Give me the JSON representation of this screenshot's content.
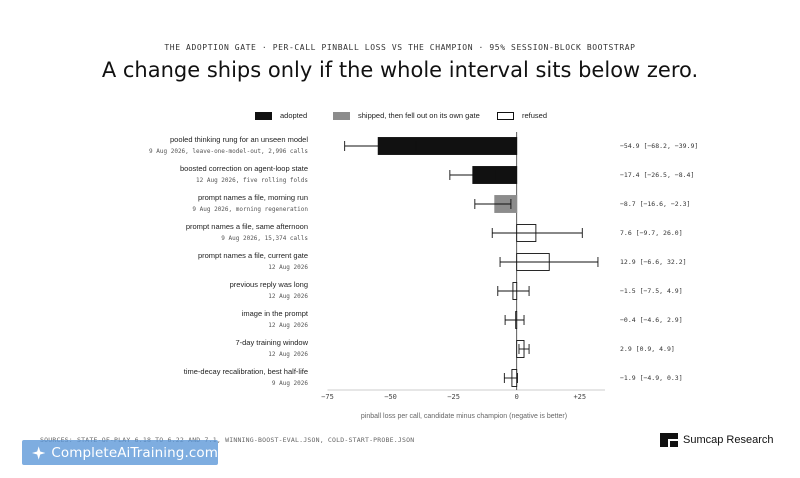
{
  "header": {
    "kicker": "THE ADOPTION GATE  ·  PER-CALL PINBALL LOSS VS THE CHAMPION  ·  95% SESSION-BLOCK BOOTSTRAP",
    "headline": "A change ships only if the whole interval sits below zero."
  },
  "legend": {
    "adopted": "adopted",
    "shipped": "shipped, then fell out on its own gate",
    "refused": "refused"
  },
  "colors": {
    "adopted": "#111111",
    "shipped": "#8c8c8c",
    "refused": "#ffffff",
    "ink": "#111111"
  },
  "chart_data": {
    "type": "bar",
    "orientation": "horizontal",
    "xlabel": "pinball loss per call, candidate minus champion (negative is better)",
    "xlim": [
      -75,
      35
    ],
    "xticks": [
      -75,
      -50,
      -25,
      0,
      25
    ],
    "xtick_labels": [
      "−75",
      "−50",
      "−25",
      "0",
      "+25"
    ],
    "grid": false,
    "legend_position": "top",
    "rows": [
      {
        "label": "pooled thinking rung for an unseen model",
        "sub": "9 Aug 2026, leave-one-model-out, 2,996 calls",
        "value": -54.9,
        "lo": -68.2,
        "hi": -39.9,
        "status": "adopted",
        "annot": "−54.9  [−68.2, −39.9]"
      },
      {
        "label": "boosted correction on agent-loop state",
        "sub": "12 Aug 2026, five rolling folds",
        "value": -17.4,
        "lo": -26.5,
        "hi": -8.4,
        "status": "adopted",
        "annot": "−17.4  [−26.5, −8.4]"
      },
      {
        "label": "prompt names a file, morning run",
        "sub": "9 Aug 2026, morning regeneration",
        "value": -8.7,
        "lo": -16.6,
        "hi": -2.3,
        "status": "shipped",
        "annot": "−8.7  [−16.6, −2.3]"
      },
      {
        "label": "prompt names a file, same afternoon",
        "sub": "9 Aug 2026, 15,374 calls",
        "value": 7.6,
        "lo": -9.7,
        "hi": 26.0,
        "status": "refused",
        "annot": "7.6  [−9.7, 26.0]"
      },
      {
        "label": "prompt names a file, current gate",
        "sub": "12 Aug 2026",
        "value": 12.9,
        "lo": -6.6,
        "hi": 32.2,
        "status": "refused",
        "annot": "12.9  [−6.6, 32.2]"
      },
      {
        "label": "previous reply was long",
        "sub": "12 Aug 2026",
        "value": -1.5,
        "lo": -7.5,
        "hi": 4.9,
        "status": "refused",
        "annot": "−1.5  [−7.5, 4.9]"
      },
      {
        "label": "image in the prompt",
        "sub": "12 Aug 2026",
        "value": -0.4,
        "lo": -4.6,
        "hi": 2.9,
        "status": "refused",
        "annot": "−0.4  [−4.6, 2.9]"
      },
      {
        "label": "7-day training window",
        "sub": "12 Aug 2026",
        "value": 2.9,
        "lo": 0.9,
        "hi": 4.9,
        "status": "refused",
        "annot": "2.9  [0.9, 4.9]"
      },
      {
        "label": "time-decay recalibration, best half-life",
        "sub": "9 Aug 2026",
        "value": -1.9,
        "lo": -4.9,
        "hi": 0.3,
        "status": "refused",
        "annot": "−1.9  [−4.9, 0.3]"
      }
    ]
  },
  "footer": {
    "sources": "SOURCES: STATE-OF-PLAY 6.18 TO 6.22 AND 7.1, WINNING-BOOST-EVAL.JSON, COLD-START-PROBE.JSON",
    "watermark": "CompleteAiTraining.com",
    "brand": "Sumcap Research"
  }
}
